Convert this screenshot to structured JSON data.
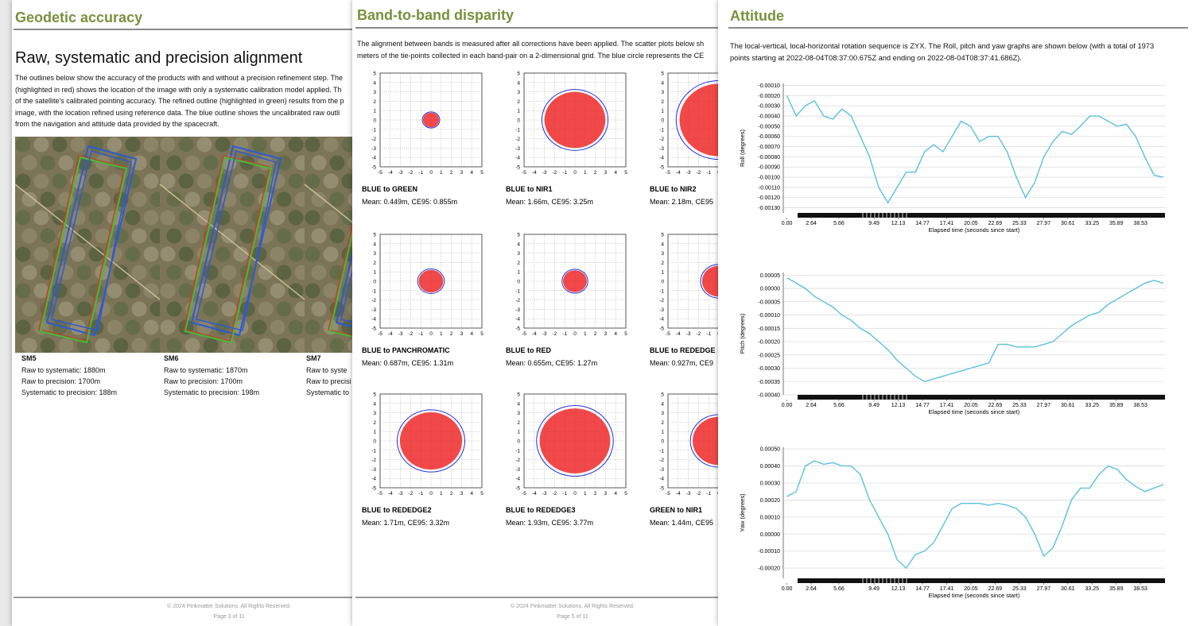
{
  "geodetic_accuracy": {
    "title": "Geodetic accuracy",
    "heading": "Raw, systematic and precision alignment",
    "paragraph": [
      "The outlines below show the accuracy of the products with and without a precision refinement step. The",
      "(highlighted in red) shows the location of the image with only a systematic calibration model applied. Th",
      "of the satellite's calibrated pointing accuracy. The refined outline (highlighted in green) results from the p",
      "image, with the location refined using reference data. The blue outline shows the uncalibrated raw outli",
      "from the navigation and attitude data provided by the spacecraft."
    ],
    "sensors": [
      {
        "name": "SM5",
        "lines": [
          "Raw to systematic: 1880m",
          "Raw to precision: 1700m",
          "Systematic to precision: 188m"
        ]
      },
      {
        "name": "SM6",
        "lines": [
          "Raw to systematic: 1870m",
          "Raw to precision: 1700m",
          "Systematic to precision: 198m"
        ]
      },
      {
        "name": "SM7",
        "lines": [
          "Raw to syste",
          "Raw to precisi",
          "Systematic to"
        ]
      }
    ],
    "footer": {
      "copyright": "© 2024 Pinkmatter Solutions. All Rights Reserved.",
      "page": "Page 3 of 11"
    }
  },
  "band_disparity": {
    "title": "Band-to-band disparity",
    "paragraph": [
      "The alignment between bands is measured after all corrections have been applied. The scatter plots below sh",
      "meters of the tie-points collected in each band-pair on a 2-dimensional grid. The blue circle represents the CE"
    ],
    "axis": {
      "lim": [
        -5,
        5
      ],
      "ticks": [
        -5,
        -4,
        -3,
        -2,
        -1,
        0,
        1,
        2,
        3,
        4,
        5
      ]
    },
    "plots": [
      {
        "title": "BLUE to GREEN",
        "caption": "Mean: 0.449m, CE95: 0.855m",
        "ce95": 0.855
      },
      {
        "title": "BLUE to NIR1",
        "caption": "Mean: 1.66m, CE95: 3.25m",
        "ce95": 3.25
      },
      {
        "title": "BLUE to NIR2",
        "caption": "Mean: 2.18m, CE95",
        "ce95": 4.2
      },
      {
        "title": "BLUE to PANCHROMATIC",
        "caption": "Mean: 0.687m, CE95: 1.31m",
        "ce95": 1.31
      },
      {
        "title": "BLUE to RED",
        "caption": "Mean: 0.655m, CE95: 1.27m",
        "ce95": 1.27
      },
      {
        "title": "BLUE to REDEDGE",
        "caption": "Mean: 0.927m, CE9",
        "ce95": 1.8
      },
      {
        "title": "BLUE to REDEDGE2",
        "caption": "Mean: 1.71m, CE95: 3.32m",
        "ce95": 3.32
      },
      {
        "title": "BLUE to REDEDGE3",
        "caption": "Mean: 1.93m, CE95: 3.77m",
        "ce95": 3.77
      },
      {
        "title": "GREEN to NIR1",
        "caption": "Mean: 1.44m, CE95",
        "ce95": 2.8
      }
    ],
    "footer": {
      "copyright": "© 2024 Pinkmatter Solutions. All Rights Reserved.",
      "page": "Page 5 of 11"
    }
  },
  "attitude": {
    "title": "Attitude",
    "paragraph": [
      "The local-vertical, local-horizontal rotation sequence is ZYX. The Roll, pitch and yaw graphs are shown below (with a total of 1973",
      "points starting at 2022-08-04T08:37:00.675Z and ending on 2022-08-04T08:37:41.686Z)."
    ]
  },
  "chart_data": [
    {
      "type": "line",
      "ylabel": "Roll (degrees)",
      "xlabel": "Elapsed time (seconds since start)",
      "color": "#5bc0de",
      "grid": true,
      "x": [
        0,
        1,
        2,
        3,
        4,
        5,
        6,
        7,
        8,
        9,
        10,
        11,
        12,
        13,
        14,
        15,
        16,
        17,
        18,
        19,
        20,
        21,
        22,
        23,
        24,
        25,
        26,
        27,
        28,
        29,
        30,
        31,
        32,
        33,
        34,
        35,
        36,
        37,
        38,
        39,
        40,
        41
      ],
      "values": [
        -0.0002,
        -0.0004,
        -0.0003,
        -0.00025,
        -0.0004,
        -0.00043,
        -0.00033,
        -0.0004,
        -0.0006,
        -0.0008,
        -0.0011,
        -0.00125,
        -0.0011,
        -0.00095,
        -0.00095,
        -0.00075,
        -0.00068,
        -0.00075,
        -0.0006,
        -0.00045,
        -0.0005,
        -0.00065,
        -0.0006,
        -0.0006,
        -0.00075,
        -0.001,
        -0.0012,
        -0.00105,
        -0.0008,
        -0.00065,
        -0.00055,
        -0.00058,
        -0.0005,
        -0.0004,
        -0.0004,
        -0.00045,
        -0.0005,
        -0.00048,
        -0.0006,
        -0.0008,
        -0.00098,
        -0.001
      ],
      "xlim": [
        -0.4,
        41.2
      ],
      "xticks": [
        {
          "value": 0,
          "label": "0.00"
        },
        2.64,
        5.66,
        9.49,
        12.13,
        14.77,
        17.41,
        20.05,
        22.69,
        25.33,
        27.97,
        30.61,
        33.25,
        35.89,
        38.53
      ],
      "ylim": [
        -0.00135,
        -8e-05
      ],
      "yticks": [
        {
          "value": -0.0001,
          "label": "-0.00010"
        },
        {
          "value": -0.0002,
          "label": "-0.00020"
        },
        {
          "value": -0.0003,
          "label": "-0.00030"
        },
        {
          "value": -0.0004,
          "label": "-0.00040"
        },
        {
          "value": -0.0005,
          "label": "-0.00050"
        },
        {
          "value": -0.0006,
          "label": "-0.00060"
        },
        {
          "value": -0.0007,
          "label": "-0.00070"
        },
        {
          "value": -0.0008,
          "label": "-0.00080"
        },
        {
          "value": -0.0009,
          "label": "-0.00090"
        },
        {
          "value": -0.001,
          "label": "-0.00100"
        },
        {
          "value": -0.0011,
          "label": "-0.00110"
        },
        {
          "value": -0.0012,
          "label": "-0.00120"
        },
        {
          "value": -0.0013,
          "label": "-0.00130"
        }
      ]
    },
    {
      "type": "line",
      "ylabel": "Pitch (degrees)",
      "xlabel": "Elapsed time (seconds since start)",
      "color": "#5bc0de",
      "grid": true,
      "x": [
        0,
        1,
        2,
        3,
        4,
        5,
        6,
        7,
        8,
        9,
        10,
        11,
        12,
        13,
        14,
        15,
        16,
        17,
        18,
        19,
        20,
        21,
        22,
        23,
        24,
        25,
        26,
        27,
        28,
        29,
        30,
        31,
        32,
        33,
        34,
        35,
        36,
        37,
        38,
        39,
        40,
        41
      ],
      "values": [
        4e-05,
        2e-05,
        0.0,
        -3e-05,
        -5e-05,
        -7e-05,
        -0.0001,
        -0.00012,
        -0.00015,
        -0.00017,
        -0.0002,
        -0.00023,
        -0.00027,
        -0.0003,
        -0.00033,
        -0.00035,
        -0.00034,
        -0.00033,
        -0.00032,
        -0.00031,
        -0.0003,
        -0.00029,
        -0.00028,
        -0.00021,
        -0.00021,
        -0.00022,
        -0.00022,
        -0.00022,
        -0.00021,
        -0.0002,
        -0.00017,
        -0.00014,
        -0.00012,
        -0.0001,
        -9e-05,
        -6e-05,
        -4e-05,
        -2e-05,
        0.0,
        2e-05,
        3e-05,
        2e-05
      ],
      "xlim": [
        -0.4,
        41.2
      ],
      "xticks": [
        {
          "value": 0,
          "label": "0.00"
        },
        2.64,
        5.66,
        9.49,
        12.13,
        14.77,
        17.41,
        20.05,
        22.69,
        25.33,
        27.97,
        30.61,
        33.25,
        35.89,
        38.53
      ],
      "ylim": [
        -0.0004,
        6e-05
      ],
      "yticks": [
        {
          "value": 5e-05,
          "label": "0.00005"
        },
        {
          "value": 0,
          "label": "0.00000"
        },
        {
          "value": -5e-05,
          "label": "-0.00005"
        },
        {
          "value": -0.0001,
          "label": "-0.00010"
        },
        {
          "value": -0.00015,
          "label": "-0.00015"
        },
        {
          "value": -0.0002,
          "label": "-0.00020"
        },
        {
          "value": -0.00025,
          "label": "-0.00025"
        },
        {
          "value": -0.0003,
          "label": "-0.00030"
        },
        {
          "value": -0.00035,
          "label": "-0.00035"
        },
        {
          "value": -0.0004,
          "label": "-0.00040"
        }
      ]
    },
    {
      "type": "line",
      "ylabel": "Yaw (degrees)",
      "xlabel": "Elapsed time (seconds since start)",
      "color": "#5bc0de",
      "grid": true,
      "x": [
        0,
        1,
        2,
        3,
        4,
        5,
        6,
        7,
        8,
        9,
        10,
        11,
        12,
        13,
        14,
        15,
        16,
        17,
        18,
        19,
        20,
        21,
        22,
        23,
        24,
        25,
        26,
        27,
        28,
        29,
        30,
        31,
        32,
        33,
        34,
        35,
        36,
        37,
        38,
        39,
        40,
        41
      ],
      "values": [
        0.00022,
        0.00025,
        0.0004,
        0.00043,
        0.00041,
        0.00042,
        0.0004,
        0.0004,
        0.00035,
        0.0002,
        0.0001,
        0.0,
        -0.00015,
        -0.0002,
        -0.00012,
        -0.0001,
        -5e-05,
        5e-05,
        0.00015,
        0.00018,
        0.00018,
        0.00018,
        0.00017,
        0.00018,
        0.00017,
        0.00015,
        0.0001,
        0.0,
        -0.00013,
        -8e-05,
        5e-05,
        0.0002,
        0.00027,
        0.00027,
        0.00035,
        0.0004,
        0.00038,
        0.00032,
        0.00028,
        0.00025,
        0.00027,
        0.00029
      ],
      "xlim": [
        -0.4,
        41.2
      ],
      "xticks": [
        {
          "value": 0,
          "label": "0.00"
        },
        2.64,
        5.66,
        9.49,
        12.13,
        14.77,
        17.41,
        20.05,
        22.69,
        25.33,
        27.97,
        30.61,
        33.25,
        35.89,
        38.53
      ],
      "ylim": [
        -0.00026,
        0.00051
      ],
      "yticks": [
        {
          "value": 0.0005,
          "label": "0.00050"
        },
        {
          "value": 0.0004,
          "label": "0.00040"
        },
        {
          "value": 0.0003,
          "label": "0.00030"
        },
        {
          "value": 0.0002,
          "label": "0.00020"
        },
        {
          "value": 0.0001,
          "label": "0.00010"
        },
        {
          "value": 0,
          "label": "0.00000"
        },
        {
          "value": -0.0001,
          "label": "-0.00010"
        },
        {
          "value": -0.0002,
          "label": "-0.00020"
        }
      ]
    }
  ]
}
